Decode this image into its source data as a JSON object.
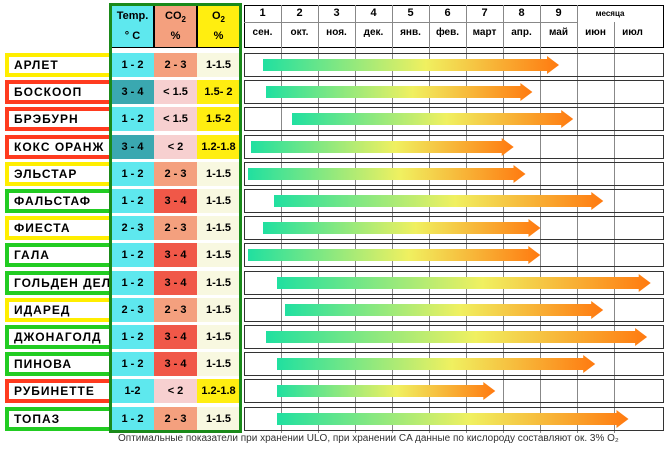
{
  "header": {
    "temp_line1": "Temp.",
    "temp_line2": "° C",
    "co2_line1": "CO",
    "co2_sub": "2",
    "co2_line2": "%",
    "o2_line1": "O",
    "o2_sub": "2",
    "o2_line2": "%"
  },
  "months": [
    {
      "num": "1",
      "name": "сен."
    },
    {
      "num": "2",
      "name": "окт."
    },
    {
      "num": "3",
      "name": "ноя."
    },
    {
      "num": "4",
      "name": "дек."
    },
    {
      "num": "5",
      "name": "янв."
    },
    {
      "num": "6",
      "name": "фев."
    },
    {
      "num": "7",
      "name": "март"
    },
    {
      "num": "8",
      "name": "апр."
    },
    {
      "num": "9",
      "name": "май"
    },
    {
      "num": "",
      "name": "июн"
    },
    {
      "num": "",
      "name": "июл"
    }
  ],
  "months_label": "месяца",
  "colors": {
    "border_yellow": "#ffee00",
    "border_red": "#ff3b1f",
    "border_green": "#22cc22",
    "temp_cyan": "#5ee8ee",
    "temp_teal": "#3aa8b0",
    "co2_pink": "#f7d0d0",
    "co2_peach": "#f4a07e",
    "co2_red": "#f05848",
    "o2_yellow": "#ffee10",
    "o2_light": "#f8f8e0",
    "bar_start": "#20e0a0",
    "bar_mid": "#f0f060",
    "bar_end": "#ff7a10"
  },
  "rows": [
    {
      "name": "АРЛЕТ",
      "border": "yellow",
      "temp": "1 - 2",
      "temp_color": "cyan",
      "co2": "2 - 3",
      "co2_color": "peach",
      "o2": "1-1.5",
      "o2_color": "light",
      "start_month": 0.5,
      "end_month": 8.5
    },
    {
      "name": "БОСКООП",
      "border": "red",
      "temp": "3 - 4",
      "temp_color": "teal",
      "co2": "< 1.5",
      "co2_color": "pink",
      "o2": "1.5- 2",
      "o2_color": "yellow",
      "start_month": 0.6,
      "end_month": 7.8
    },
    {
      "name": "БРЭБУРН",
      "border": "red",
      "temp": "1 - 2",
      "temp_color": "cyan",
      "co2": "< 1.5",
      "co2_color": "pink",
      "o2": "1.5-2",
      "o2_color": "yellow",
      "start_month": 1.3,
      "end_month": 8.9
    },
    {
      "name": "КОКС ОРАНЖ",
      "border": "red",
      "temp": "3 - 4",
      "temp_color": "teal",
      "co2": "< 2",
      "co2_color": "pink",
      "o2": "1.2-1.8",
      "o2_color": "yellow",
      "start_month": 0.2,
      "end_month": 7.3
    },
    {
      "name": "ЭЛЬСТАР",
      "border": "yellow",
      "temp": "1 - 2",
      "temp_color": "cyan",
      "co2": "2 - 3",
      "co2_color": "peach",
      "o2": "1-1.5",
      "o2_color": "light",
      "start_month": 0.1,
      "end_month": 7.6
    },
    {
      "name": "ФАЛЬСТАФ",
      "border": "green",
      "temp": "1 - 2",
      "temp_color": "cyan",
      "co2": "3 - 4",
      "co2_color": "red",
      "o2": "1-1.5",
      "o2_color": "light",
      "start_month": 0.8,
      "end_month": 9.7
    },
    {
      "name": "ФИЕСТА",
      "border": "yellow",
      "temp": "2 - 3",
      "temp_color": "cyan",
      "co2": "2 - 3",
      "co2_color": "peach",
      "o2": "1-1.5",
      "o2_color": "light",
      "start_month": 0.5,
      "end_month": 8.0
    },
    {
      "name": "ГАЛА",
      "border": "green",
      "temp": "1 - 2",
      "temp_color": "cyan",
      "co2": "3 - 4",
      "co2_color": "red",
      "o2": "1-1.5",
      "o2_color": "light",
      "start_month": 0.1,
      "end_month": 8.0
    },
    {
      "name": "ГОЛЬДЕН ДЕЛ",
      "border": "green",
      "temp": "1 - 2",
      "temp_color": "cyan",
      "co2": "3 - 4",
      "co2_color": "red",
      "o2": "1-1.5",
      "o2_color": "light",
      "start_month": 0.9,
      "end_month": 11.0
    },
    {
      "name": "ИДАРЕД",
      "border": "yellow",
      "temp": "2 - 3",
      "temp_color": "cyan",
      "co2": "2 - 3",
      "co2_color": "peach",
      "o2": "1-1.5",
      "o2_color": "light",
      "start_month": 1.1,
      "end_month": 9.7
    },
    {
      "name": "ДЖОНАГОЛД",
      "border": "green",
      "temp": "1 - 2",
      "temp_color": "cyan",
      "co2": "3 - 4",
      "co2_color": "red",
      "o2": "1-1.5",
      "o2_color": "light",
      "start_month": 0.6,
      "end_month": 10.9
    },
    {
      "name": "ПИНОВА",
      "border": "green",
      "temp": "1 - 2",
      "temp_color": "cyan",
      "co2": "3 - 4",
      "co2_color": "red",
      "o2": "1-1.5",
      "o2_color": "light",
      "start_month": 0.9,
      "end_month": 9.5
    },
    {
      "name": "РУБИНЕТТЕ",
      "border": "red",
      "temp": "1-2",
      "temp_color": "cyan",
      "co2": "< 2",
      "co2_color": "pink",
      "o2": "1.2-1.8",
      "o2_color": "yellow",
      "start_month": 0.9,
      "end_month": 6.8
    },
    {
      "name": "ТОПАЗ",
      "border": "green",
      "temp": "1 - 2",
      "temp_color": "cyan",
      "co2": "2 - 3",
      "co2_color": "peach",
      "o2": "1-1.5",
      "o2_color": "light",
      "start_month": 0.9,
      "end_month": 10.4
    }
  ],
  "footer": "Оптимальные показатели при хранении  ULO, при хранении CA данные по кислороду составляют ок. 3% O₂"
}
